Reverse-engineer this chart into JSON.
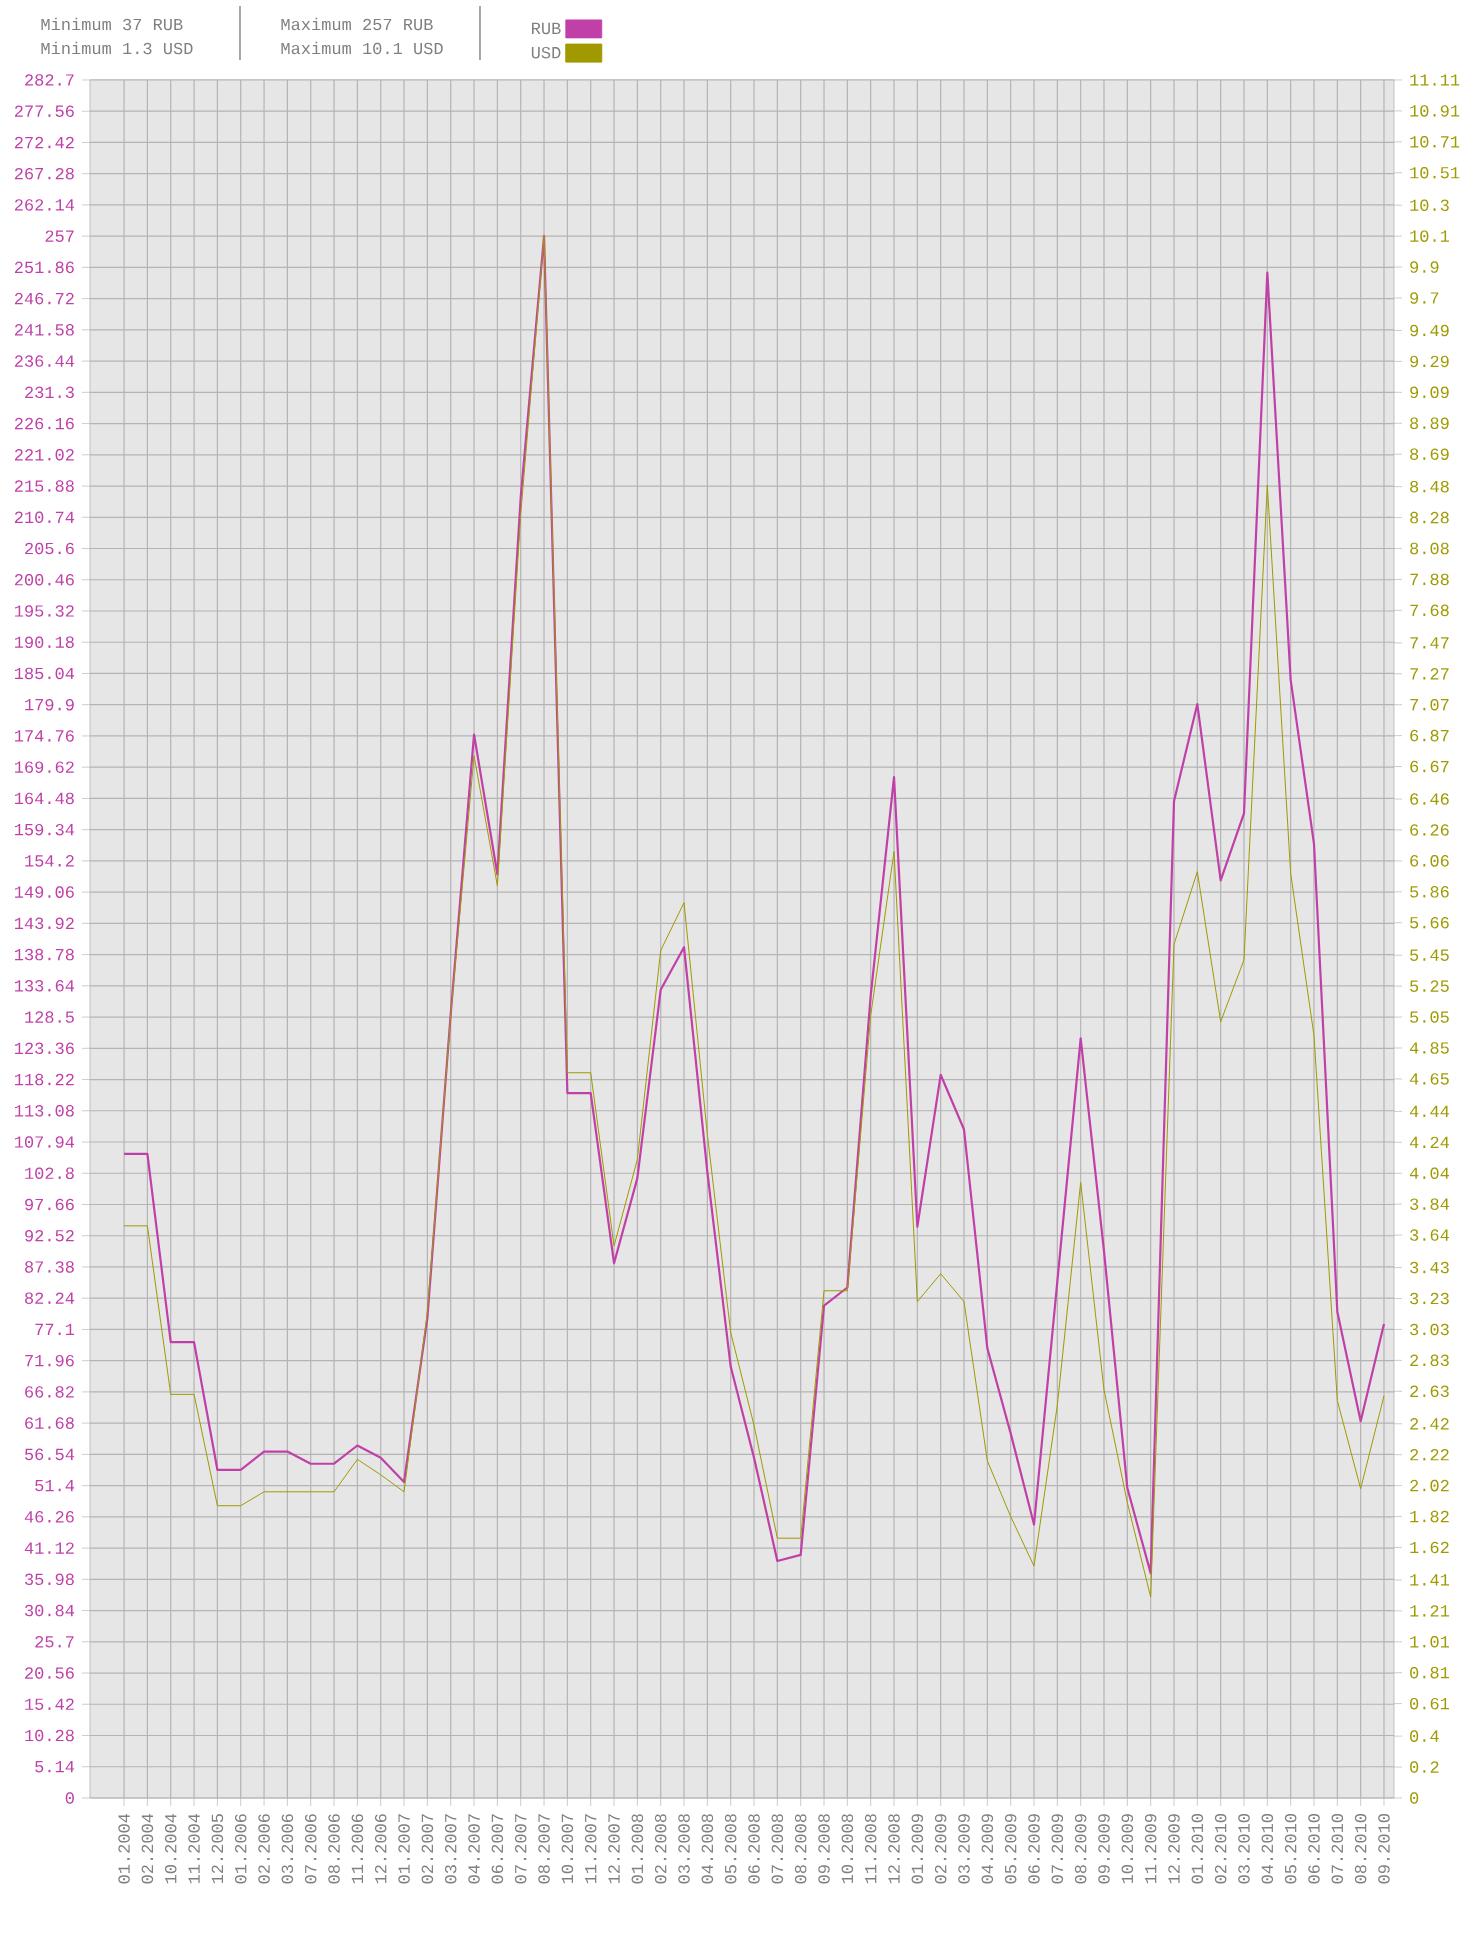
{
  "chart_data": {
    "type": "line",
    "annotations": [
      "Minimum 37 RUB",
      "Minimum 1.3 USD",
      "Maximum 257 RUB",
      "Maximum 10.1 USD"
    ],
    "categories": [
      "01.2004",
      "02.2004",
      "10.2004",
      "11.2004",
      "12.2005",
      "01.2006",
      "02.2006",
      "03.2006",
      "07.2006",
      "08.2006",
      "11.2006",
      "12.2006",
      "01.2007",
      "02.2007",
      "03.2007",
      "04.2007",
      "06.2007",
      "07.2007",
      "08.2007",
      "10.2007",
      "11.2007",
      "12.2007",
      "01.2008",
      "02.2008",
      "03.2008",
      "04.2008",
      "05.2008",
      "06.2008",
      "07.2008",
      "08.2008",
      "09.2008",
      "10.2008",
      "11.2008",
      "12.2008",
      "01.2009",
      "02.2009",
      "03.2009",
      "04.2009",
      "05.2009",
      "06.2009",
      "07.2009",
      "08.2009",
      "09.2009",
      "10.2009",
      "11.2009",
      "12.2009",
      "01.2010",
      "02.2010",
      "03.2010",
      "04.2010",
      "05.2010",
      "06.2010",
      "07.2010",
      "08.2010",
      "09.2010"
    ],
    "series": [
      {
        "name": "RUB",
        "color": "#c040a8",
        "values": [
          106,
          106,
          75,
          75,
          54,
          54,
          57,
          57,
          55,
          55,
          58,
          56,
          52,
          79,
          129,
          175,
          152,
          214,
          257,
          116,
          116,
          88,
          102,
          133,
          140,
          103,
          71,
          56,
          39,
          40,
          81,
          84,
          132,
          168,
          94,
          119,
          110,
          74,
          60,
          45,
          85,
          125,
          90,
          51,
          37,
          164,
          180,
          151,
          162,
          251,
          184,
          157,
          80,
          62,
          78
        ]
      },
      {
        "name": "USD",
        "color": "#a09a00",
        "axis": "y2",
        "values": [
          3.7,
          3.7,
          2.61,
          2.61,
          1.89,
          1.89,
          1.98,
          1.98,
          1.98,
          1.98,
          2.19,
          2.09,
          1.98,
          3.14,
          5.06,
          6.74,
          5.9,
          8.3,
          10.1,
          4.69,
          4.69,
          3.57,
          4.13,
          5.48,
          5.79,
          4.29,
          3.01,
          2.41,
          1.68,
          1.68,
          3.28,
          3.28,
          5.06,
          6.12,
          3.21,
          3.39,
          3.21,
          2.18,
          1.82,
          1.5,
          2.54,
          3.98,
          2.64,
          1.91,
          1.3,
          5.52,
          5.99,
          5.02,
          5.42,
          8.49,
          5.98,
          4.93,
          2.57,
          2.0,
          2.6
        ]
      }
    ],
    "ylim": [
      0,
      282.7
    ],
    "yticks": [
      0,
      5.14,
      10.28,
      15.42,
      20.56,
      25.7,
      30.84,
      35.98,
      41.12,
      46.26,
      51.4,
      56.54,
      61.68,
      66.82,
      71.96,
      77.1,
      82.24,
      87.38,
      92.52,
      97.66,
      102.8,
      107.94,
      113.08,
      118.22,
      123.36,
      128.5,
      133.64,
      138.78,
      143.92,
      149.06,
      154.2,
      159.34,
      164.48,
      169.62,
      174.76,
      179.9,
      185.04,
      190.18,
      195.32,
      200.46,
      205.6,
      210.74,
      215.88,
      221.02,
      226.16,
      231.3,
      236.44,
      241.58,
      246.72,
      251.86,
      257,
      262.14,
      267.28,
      272.42,
      277.56,
      282.7
    ],
    "y2lim": [
      0,
      11.11
    ],
    "y2ticks": [
      0,
      0.2,
      0.4,
      0.61,
      0.81,
      1.01,
      1.21,
      1.41,
      1.62,
      1.82,
      2.02,
      2.22,
      2.42,
      2.63,
      2.83,
      3.03,
      3.23,
      3.43,
      3.64,
      3.84,
      4.04,
      4.24,
      4.44,
      4.65,
      4.85,
      5.05,
      5.25,
      5.45,
      5.66,
      5.86,
      6.06,
      6.26,
      6.46,
      6.67,
      6.87,
      7.07,
      7.27,
      7.47,
      7.68,
      7.88,
      8.08,
      8.28,
      8.48,
      8.69,
      8.89,
      9.09,
      9.29,
      9.49,
      9.7,
      9.9,
      10.1,
      10.3,
      10.51,
      10.71,
      10.91,
      11.11
    ],
    "grid": true,
    "legend": "top"
  }
}
